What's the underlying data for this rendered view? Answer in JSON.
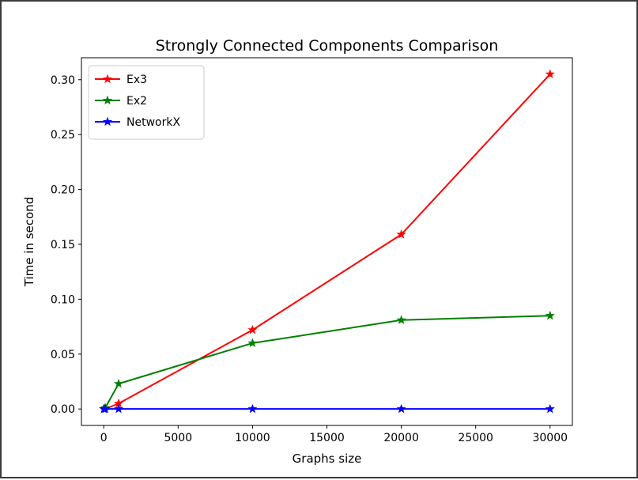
{
  "chart_data": {
    "type": "line",
    "title": "Strongly Connected Components Comparison",
    "xlabel": "Graphs size",
    "ylabel": "Time in second",
    "xlim": [
      -1500,
      31500
    ],
    "ylim": [
      -0.015,
      0.32
    ],
    "xticks": [
      0,
      5000,
      10000,
      15000,
      20000,
      25000,
      30000
    ],
    "xtick_labels": [
      "0",
      "5000",
      "10000",
      "15000",
      "20000",
      "25000",
      "30000"
    ],
    "yticks": [
      0.0,
      0.05,
      0.1,
      0.15,
      0.2,
      0.25,
      0.3
    ],
    "ytick_labels": [
      "0.00",
      "0.05",
      "0.10",
      "0.15",
      "0.20",
      "0.25",
      "0.30"
    ],
    "grid": false,
    "legend_position": "top-left",
    "marker": "star",
    "series": [
      {
        "name": "Ex3",
        "color": "#ff0000",
        "x": [
          10,
          100,
          1000,
          10000,
          20000,
          30000
        ],
        "y": [
          0.0,
          0.0,
          0.005,
          0.072,
          0.159,
          0.305
        ]
      },
      {
        "name": "Ex2",
        "color": "#008000",
        "x": [
          10,
          100,
          1000,
          10000,
          20000,
          30000
        ],
        "y": [
          0.0,
          0.001,
          0.023,
          0.06,
          0.081,
          0.085
        ]
      },
      {
        "name": "NetworkX",
        "color": "#0000ff",
        "x": [
          10,
          100,
          1000,
          10000,
          20000,
          30000
        ],
        "y": [
          0.0,
          0.0,
          0.0,
          0.0,
          0.0,
          0.0
        ]
      }
    ]
  }
}
